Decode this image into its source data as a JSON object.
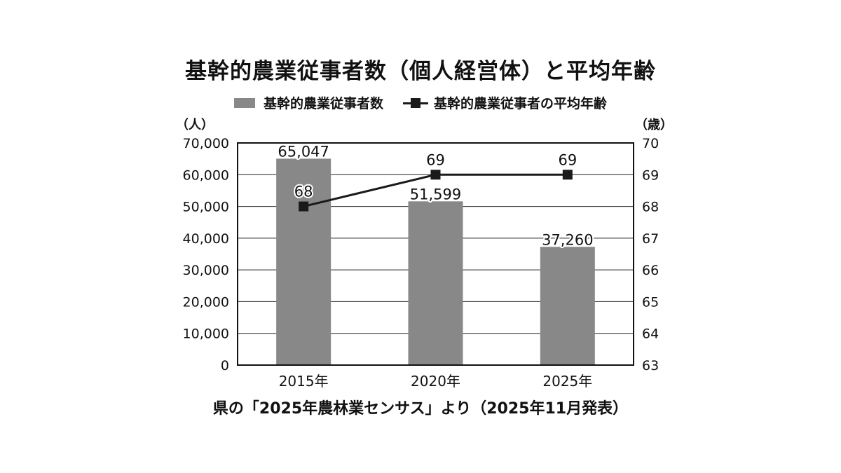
{
  "title": "基幹的農業従事者数（個人経営体）と平均年齢",
  "legend": {
    "bar_label": "基幹的農業従事者数",
    "line_label": "基幹的農業従事者の平均年齢"
  },
  "units": {
    "left": "（人）",
    "right": "（歳）"
  },
  "source": "県の「2025年農林業センサス」より（2025年11月発表）",
  "chart_data": {
    "type": "bar",
    "categories": [
      "2015年",
      "2020年",
      "2025年"
    ],
    "series": [
      {
        "name": "基幹的農業従事者数",
        "type": "bar",
        "axis": "left",
        "values": [
          65047,
          51599,
          37260
        ],
        "labels": [
          "65,047",
          "51,599",
          "37,260"
        ],
        "color": "#888888"
      },
      {
        "name": "基幹的農業従事者の平均年齢",
        "type": "line",
        "axis": "right",
        "values": [
          68,
          69,
          69
        ],
        "labels": [
          "68",
          "69",
          "69"
        ],
        "color": "#1a1a1a"
      }
    ],
    "y_left": {
      "min": 0,
      "max": 70000,
      "ticks": [
        0,
        10000,
        20000,
        30000,
        40000,
        50000,
        60000,
        70000
      ],
      "tick_labels": [
        "0",
        "10,000",
        "20,000",
        "30,000",
        "40,000",
        "50,000",
        "60,000",
        "70,000"
      ]
    },
    "y_right": {
      "min": 63,
      "max": 70,
      "ticks": [
        63,
        64,
        65,
        66,
        67,
        68,
        69,
        70
      ],
      "tick_labels": [
        "63",
        "64",
        "65",
        "66",
        "67",
        "68",
        "69",
        "70"
      ]
    },
    "grid": true,
    "legend_position": "top"
  }
}
